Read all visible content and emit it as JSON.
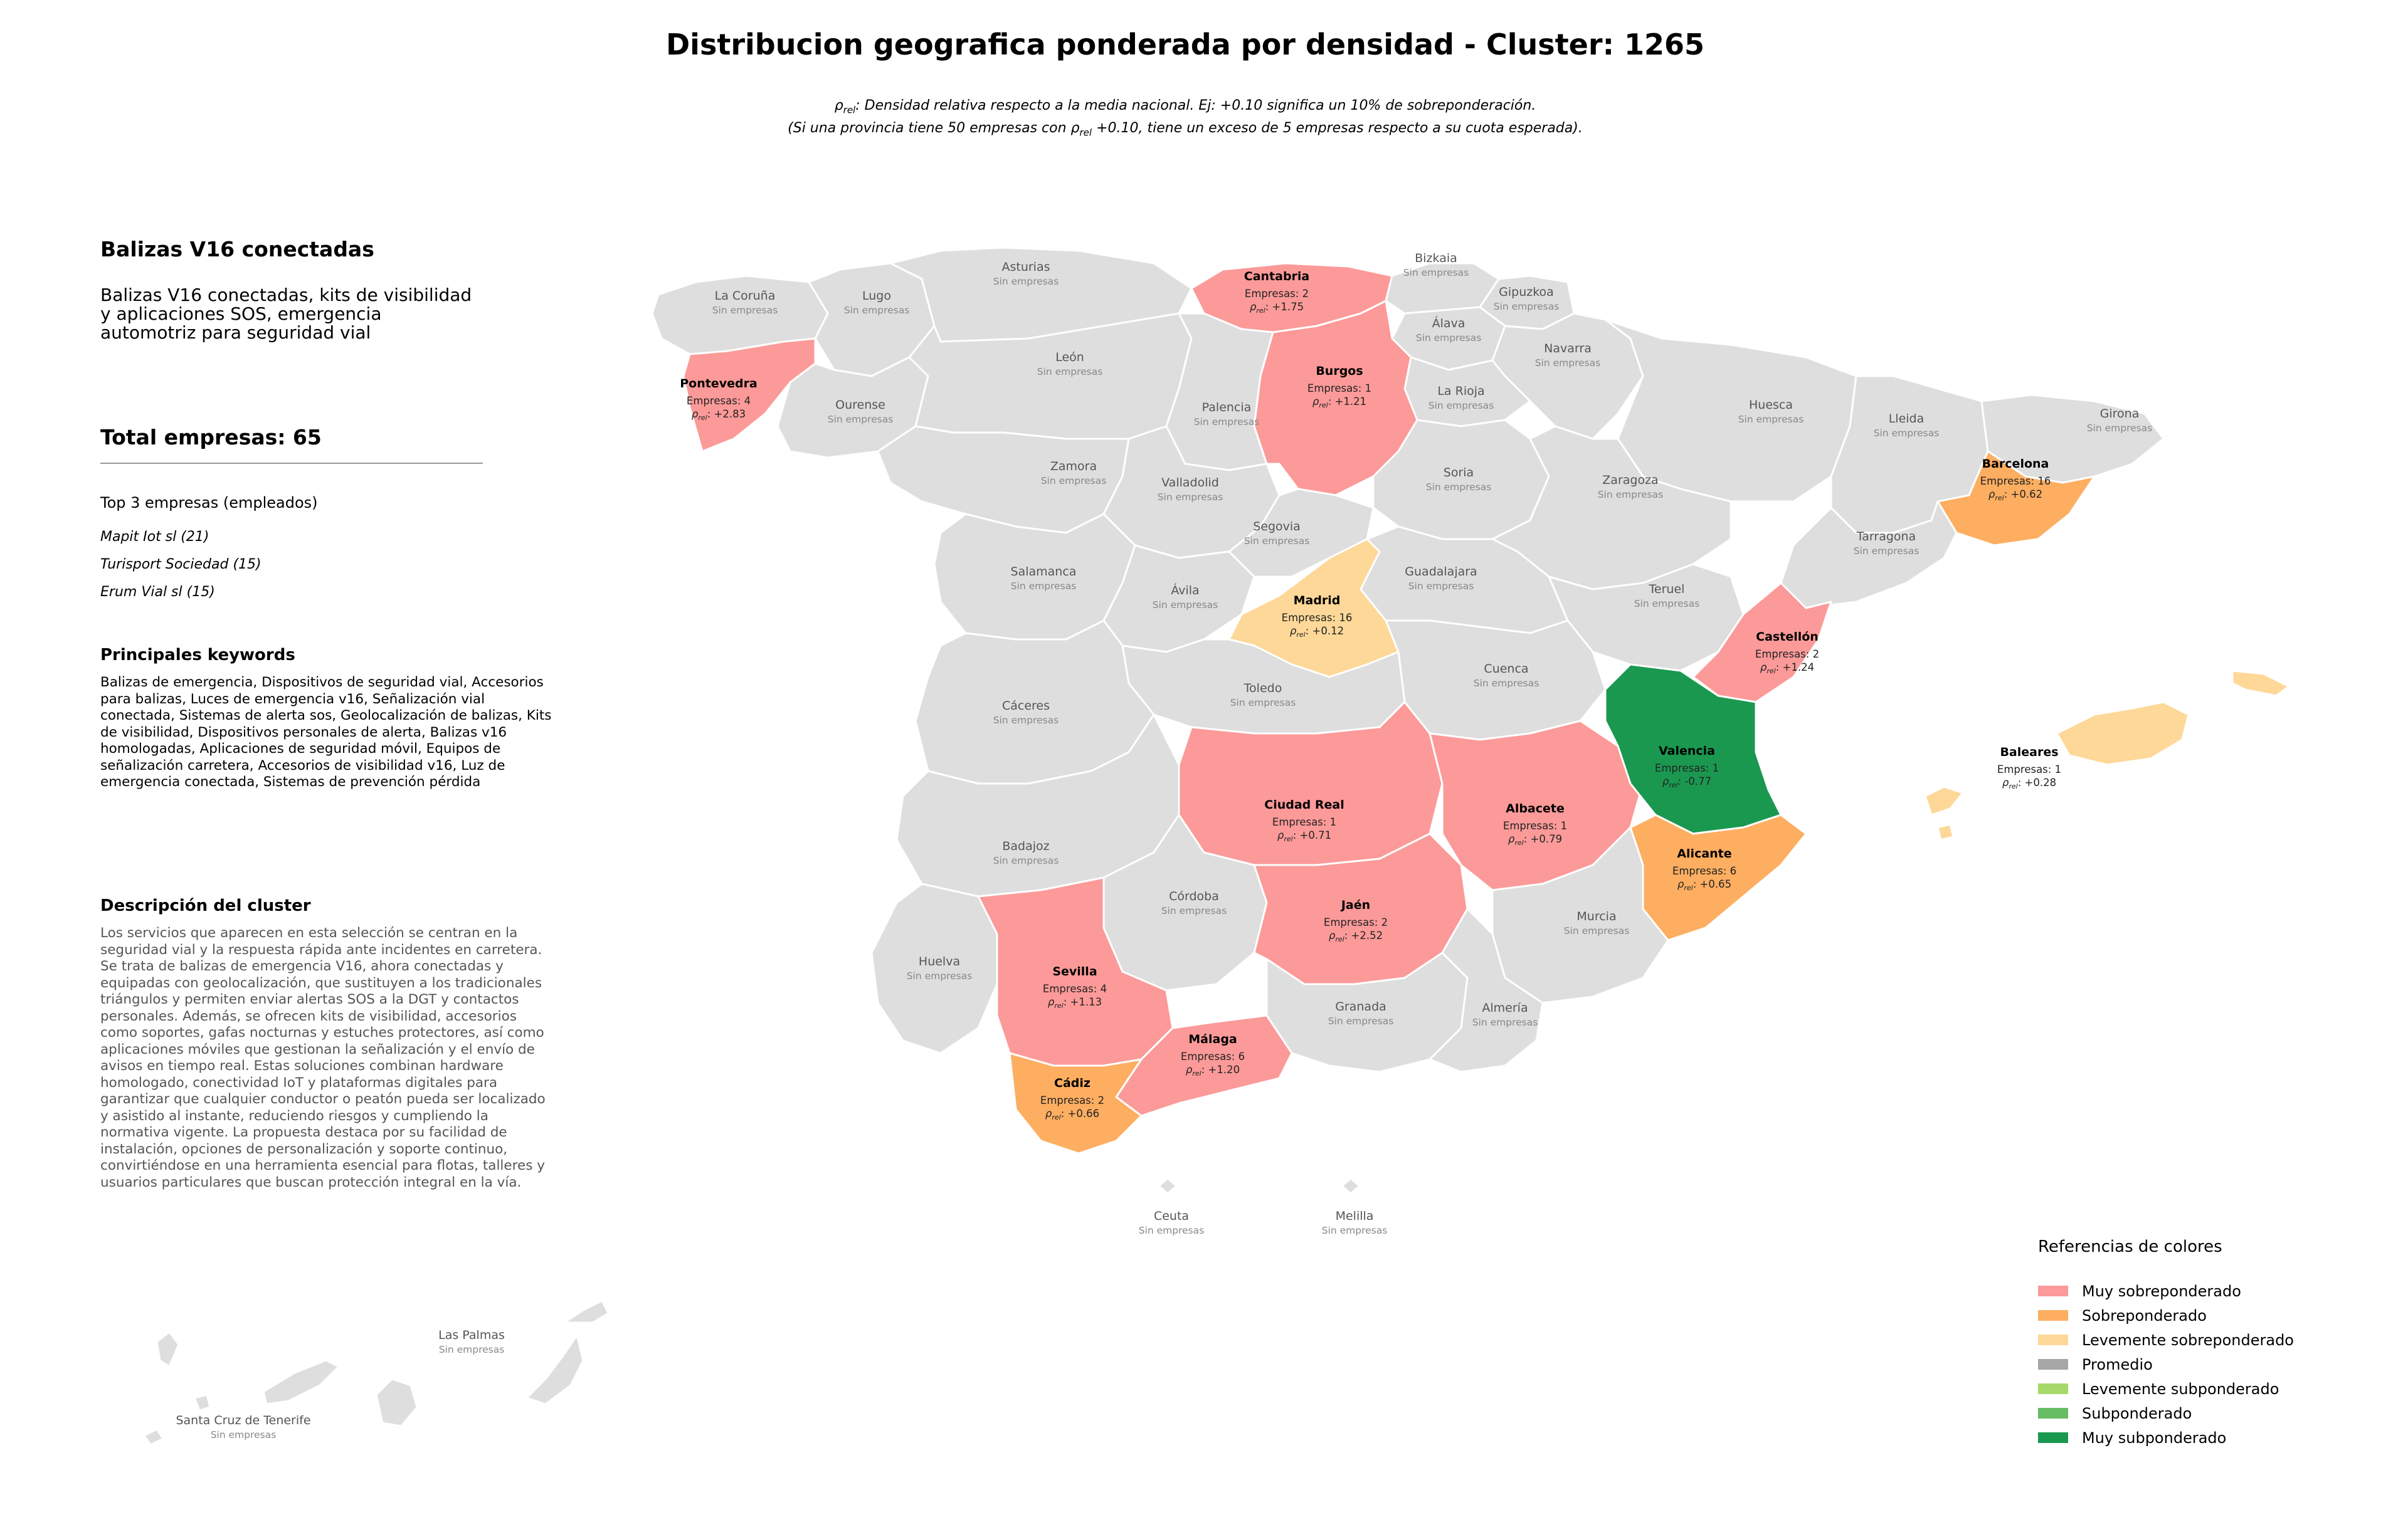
{
  "title": "Distribucion geografica ponderada por densidad - Cluster: 1265",
  "subtitle": {
    "line1_sym": "ρ",
    "line1_sub": "rel",
    "line1_rest": ": Densidad relativa respecto a la media nacional. Ej: +0.10 significa un 10% de sobreponderación.",
    "line2_pre": "(Si una provincia tiene 50 empresas con ",
    "line2_sym": "ρ",
    "line2_sub": "rel",
    "line2_rest": " +0.10, tiene un exceso de 5 empresas respecto a su cuota esperada)."
  },
  "panel": {
    "cluster_name": "Balizas V16 conectadas",
    "cluster_short": "Balizas V16 conectadas, kits de visibilidad y aplicaciones SOS, emergencia automotriz para seguridad vial",
    "total_label": "Total empresas: 65",
    "top3_heading": "Top 3 empresas (empleados)",
    "top3": [
      "Mapit Iot sl (21)",
      "Turisport Sociedad (15)",
      "Erum Vial sl (15)"
    ],
    "keywords_heading": "Principales keywords",
    "keywords": "Balizas de emergencia, Dispositivos de seguridad vial, Accesorios para balizas, Luces de emergencia v16, Señalización vial conectada, Sistemas de alerta sos, Geolocalización de balizas, Kits de visibilidad, Dispositivos personales de alerta, Balizas v16 homologadas, Aplicaciones de seguridad móvil, Equipos de señalización carretera, Accesorios de visibilidad v16, Luz de emergencia conectada, Sistemas de prevención pérdida",
    "description_heading": "Descripción del cluster",
    "description": "Los servicios que aparecen en esta selección se centran en la seguridad vial y la respuesta rápida ante incidentes en carretera. Se trata de balizas de emergencia V16, ahora conectadas y equipadas con geolocalización, que sustituyen a los tradicionales triángulos y permiten enviar alertas SOS a la DGT y contactos personales. Además, se ofrecen kits de visibilidad, accesorios como soportes, gafas nocturnas y estuches protectores, así como aplicaciones móviles que gestionan la señalización y el envío de avisos en tiempo real. Estas soluciones combinan hardware homologado, conectividad IoT y plataformas digitales para garantizar que cualquier conductor o peatón pueda ser localizado y asistido al instante, reduciendo riesgos y cumpliendo la normativa vigente. La propuesta destaca por su facilidad de instalación, opciones de personalización y soporte continuo, convirtiéndose en una herramienta esencial para flotas, talleres y usuarios particulares que buscan protección integral en la vía."
  },
  "labels": {
    "empty": "Sin empresas",
    "companies_prefix": "Empresas: ",
    "rho_sym": "ρ",
    "rho_sub": "rel",
    "rho_sep": ": "
  },
  "colors": {
    "Muy sobreponderado": "#fb9a99",
    "Sobreponderado": "#fdae61",
    "Levemente sobreponderado": "#fed898",
    "Promedio": "#a6a6a6",
    "Levemente subponderado": "#a6d96a",
    "Subponderado": "#66bd63",
    "Muy subponderado": "#1a9850",
    "Sin empresas": "#dedede"
  },
  "legend": {
    "title": "Referencias de colores",
    "items": [
      "Muy sobreponderado",
      "Sobreponderado",
      "Levemente sobreponderado",
      "Promedio",
      "Levemente subponderado",
      "Subponderado",
      "Muy subponderado"
    ]
  },
  "provinces": [
    {
      "name": "La Coruña"
    },
    {
      "name": "Lugo"
    },
    {
      "name": "Asturias"
    },
    {
      "name": "Cantabria",
      "companies": 2,
      "rho": "+1.75",
      "category": "Muy sobreponderado"
    },
    {
      "name": "Bizkaia"
    },
    {
      "name": "Gipuzkoa"
    },
    {
      "name": "Álava"
    },
    {
      "name": "Navarra"
    },
    {
      "name": "Pontevedra",
      "companies": 4,
      "rho": "+2.83",
      "category": "Muy sobreponderado"
    },
    {
      "name": "Ourense"
    },
    {
      "name": "León"
    },
    {
      "name": "Burgos",
      "companies": 1,
      "rho": "+1.21",
      "category": "Muy sobreponderado"
    },
    {
      "name": "Palencia"
    },
    {
      "name": "La Rioja"
    },
    {
      "name": "Huesca"
    },
    {
      "name": "Lleida"
    },
    {
      "name": "Girona"
    },
    {
      "name": "Barcelona",
      "companies": 16,
      "rho": "+0.62",
      "category": "Sobreponderado"
    },
    {
      "name": "Zamora"
    },
    {
      "name": "Valladolid"
    },
    {
      "name": "Soria"
    },
    {
      "name": "Zaragoza"
    },
    {
      "name": "Segovia"
    },
    {
      "name": "Tarragona"
    },
    {
      "name": "Salamanca"
    },
    {
      "name": "Ávila"
    },
    {
      "name": "Madrid",
      "companies": 16,
      "rho": "+0.12",
      "category": "Levemente sobreponderado"
    },
    {
      "name": "Guadalajara"
    },
    {
      "name": "Teruel"
    },
    {
      "name": "Castellón",
      "companies": 2,
      "rho": "+1.24",
      "category": "Muy sobreponderado"
    },
    {
      "name": "Cáceres"
    },
    {
      "name": "Toledo"
    },
    {
      "name": "Cuenca"
    },
    {
      "name": "Valencia",
      "companies": 1,
      "rho": "-0.77",
      "category": "Muy subponderado"
    },
    {
      "name": "Baleares",
      "companies": 1,
      "rho": "+0.28",
      "category": "Levemente sobreponderado"
    },
    {
      "name": "Badajoz"
    },
    {
      "name": "Ciudad Real",
      "companies": 1,
      "rho": "+0.71",
      "category": "Muy sobreponderado"
    },
    {
      "name": "Albacete",
      "companies": 1,
      "rho": "+0.79",
      "category": "Muy sobreponderado"
    },
    {
      "name": "Alicante",
      "companies": 6,
      "rho": "+0.65",
      "category": "Sobreponderado"
    },
    {
      "name": "Córdoba"
    },
    {
      "name": "Jaén",
      "companies": 2,
      "rho": "+2.52",
      "category": "Muy sobreponderado"
    },
    {
      "name": "Murcia"
    },
    {
      "name": "Huelva"
    },
    {
      "name": "Sevilla",
      "companies": 4,
      "rho": "+1.13",
      "category": "Muy sobreponderado"
    },
    {
      "name": "Granada"
    },
    {
      "name": "Almería"
    },
    {
      "name": "Málaga",
      "companies": 6,
      "rho": "+1.20",
      "category": "Muy sobreponderado"
    },
    {
      "name": "Cádiz",
      "companies": 2,
      "rho": "+0.66",
      "category": "Sobreponderado"
    },
    {
      "name": "Ceuta"
    },
    {
      "name": "Melilla"
    },
    {
      "name": "Las Palmas"
    },
    {
      "name": "Santa Cruz de Tenerife"
    }
  ]
}
